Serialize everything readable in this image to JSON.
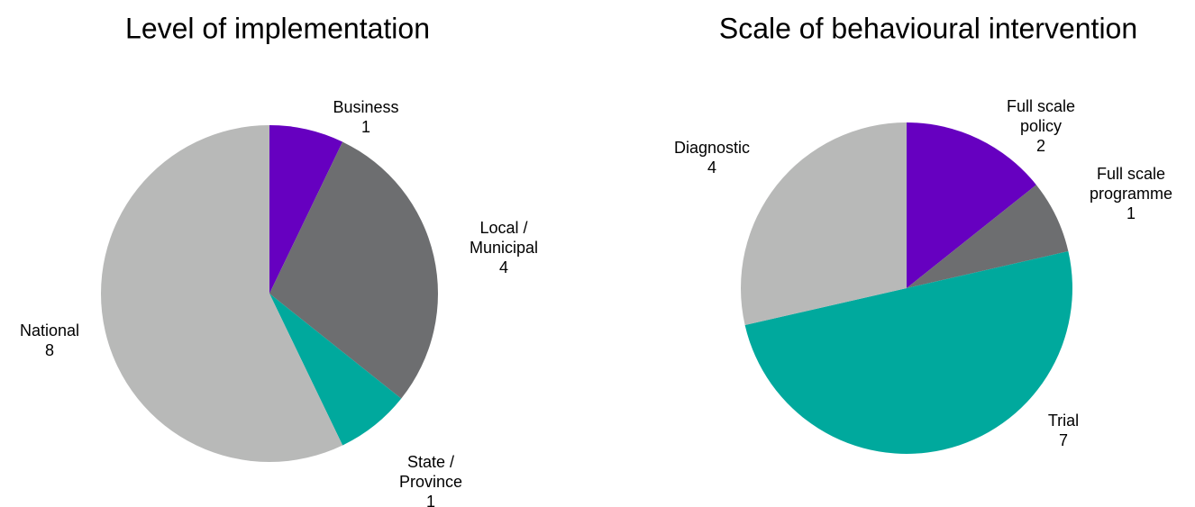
{
  "chart_data": [
    {
      "type": "pie",
      "title": "Level of implementation",
      "categories": [
        "Business",
        "Local / Municipal",
        "State / Province",
        "National"
      ],
      "values": [
        1,
        4,
        1,
        8
      ],
      "colors": [
        "#6600c0",
        "#6d6e70",
        "#00a99d",
        "#b8b9b8"
      ]
    },
    {
      "type": "pie",
      "title": "Scale of behavioural intervention",
      "categories": [
        "Full scale policy",
        "Full scale programme",
        "Trial",
        "Diagnostic"
      ],
      "values": [
        2,
        1,
        7,
        4
      ],
      "colors": [
        "#6600c0",
        "#6d6e70",
        "#00a99d",
        "#b8b9b8"
      ]
    }
  ]
}
